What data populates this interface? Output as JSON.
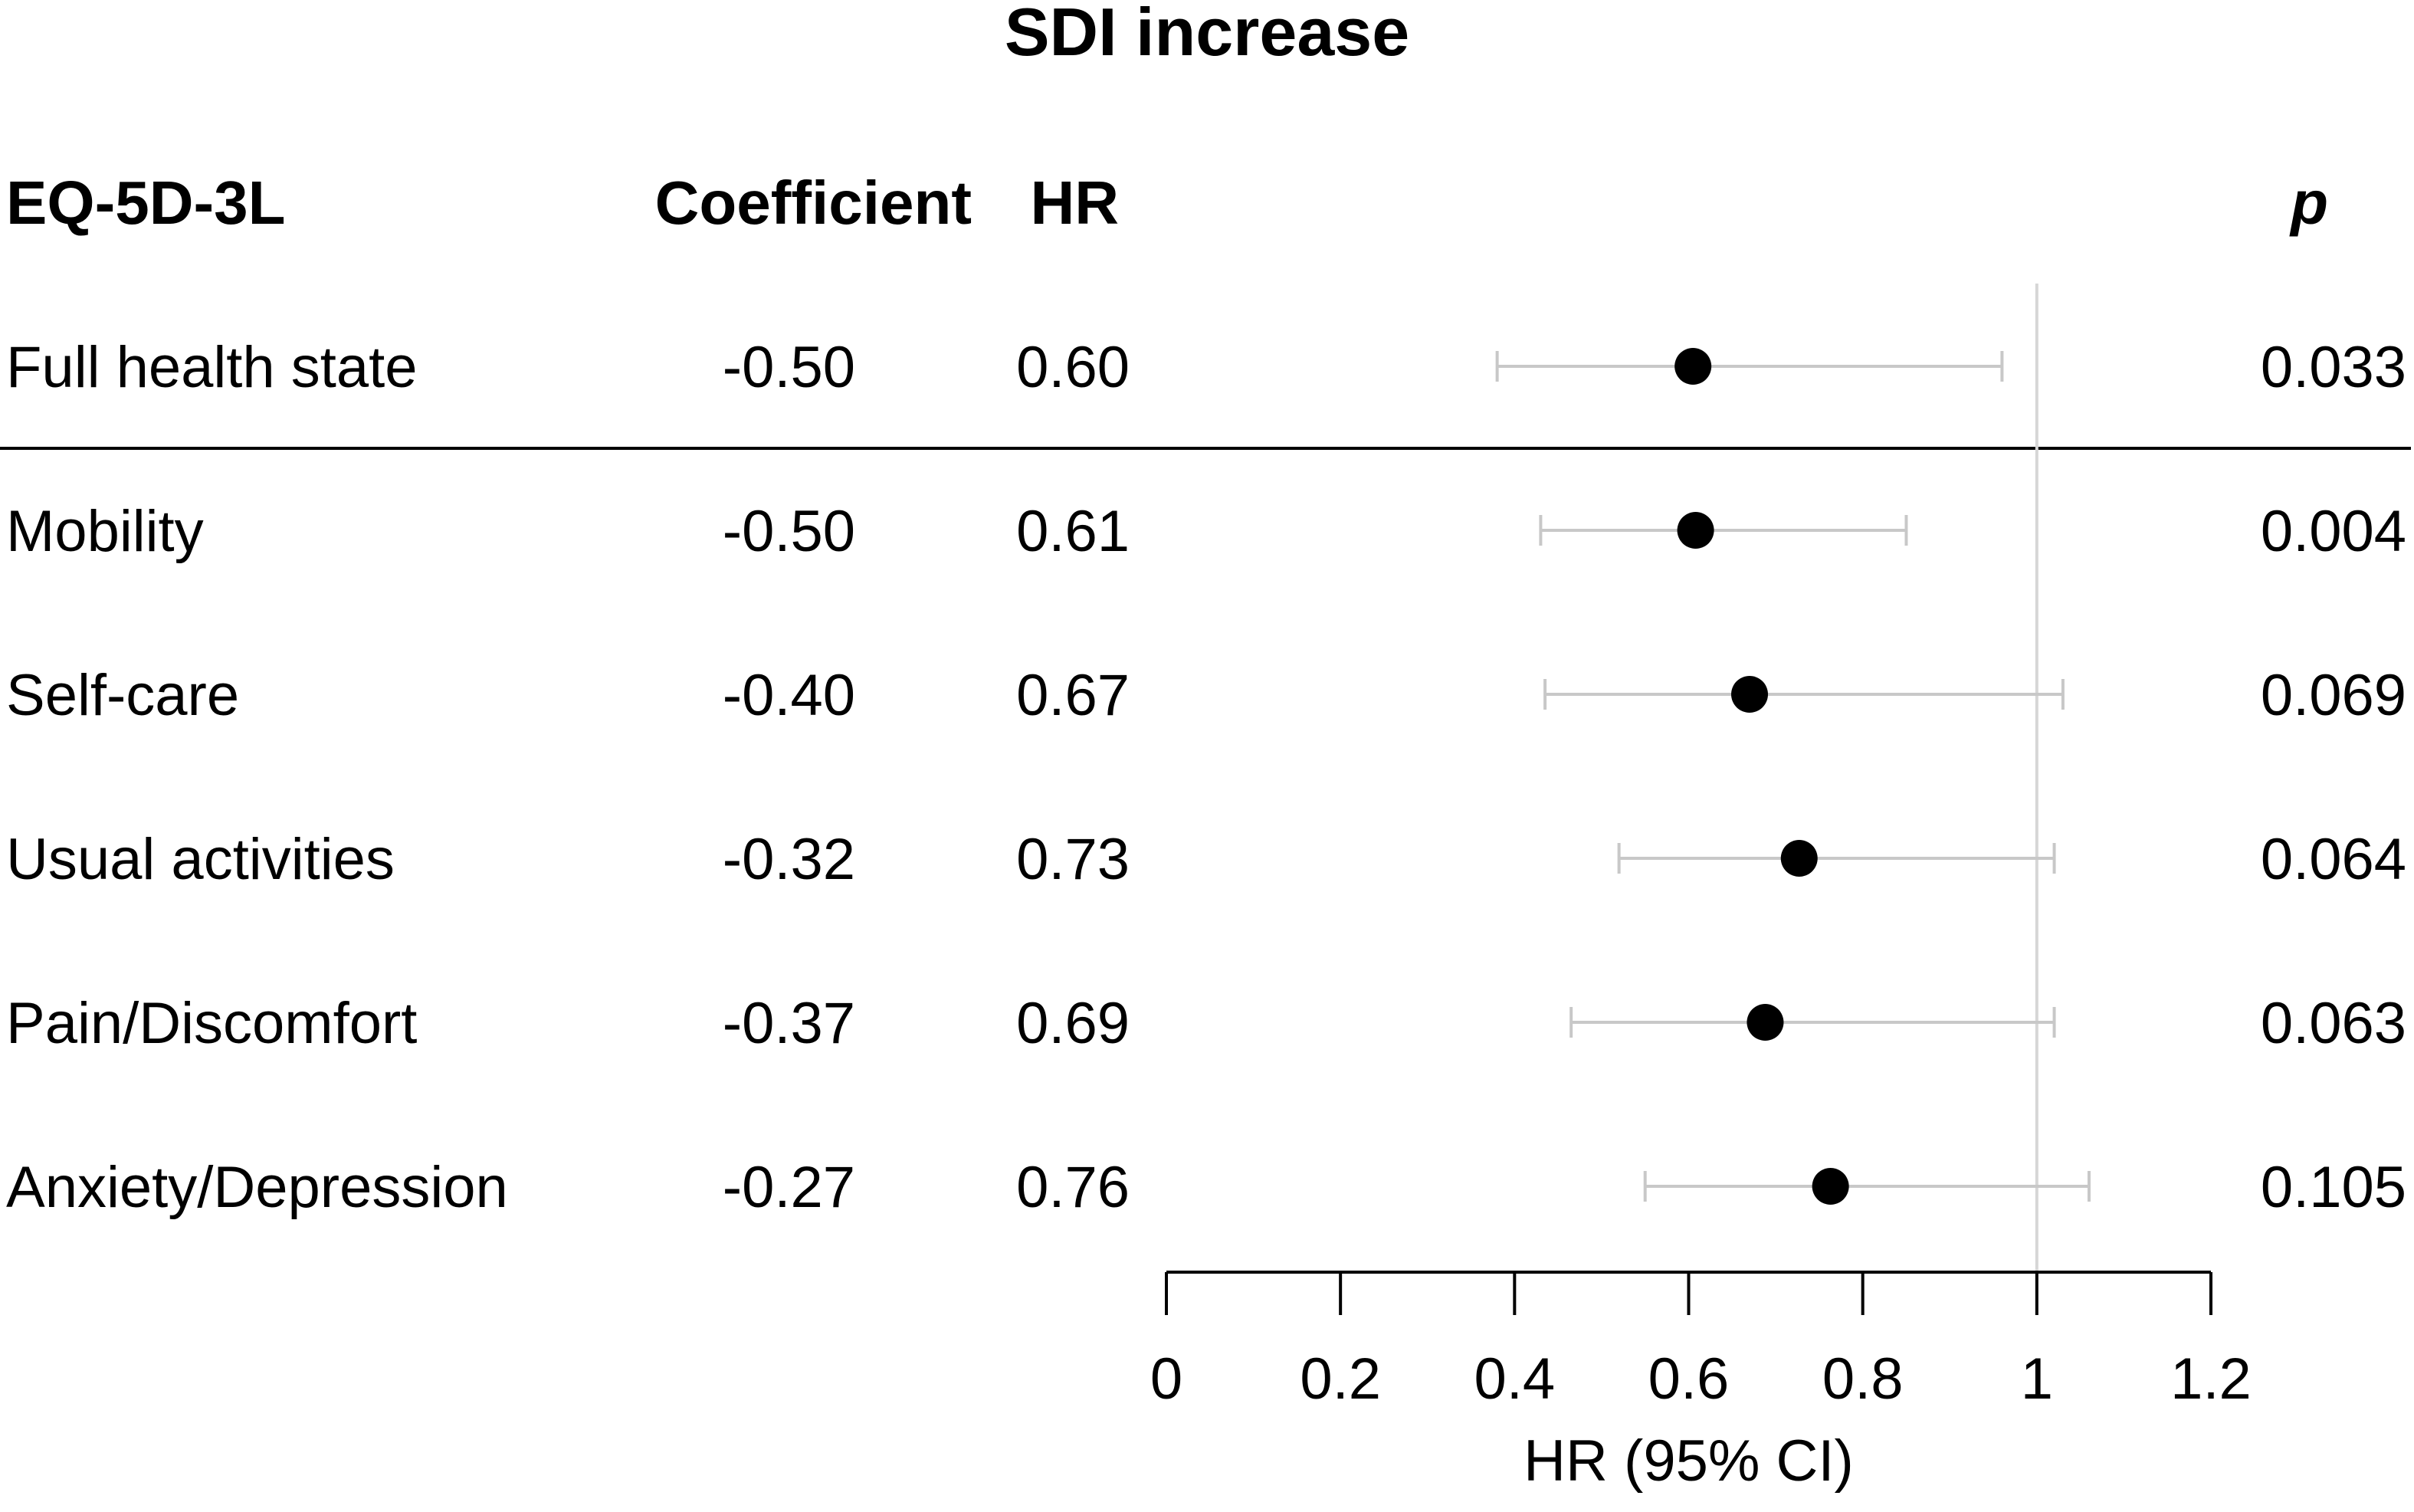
{
  "chart_data": {
    "type": "forest",
    "title": "SDI increase",
    "columns": {
      "label": "EQ-5D-3L",
      "coefficient": "Coefficient",
      "hr": "HR",
      "p": "p"
    },
    "rows": [
      {
        "label": "Full health state",
        "coefficient": "-0.50",
        "hr_text": "0.60",
        "hr": 0.605,
        "ci_low": 0.38,
        "ci_high": 0.96,
        "p": "0.033"
      },
      {
        "label": "Mobility",
        "coefficient": "-0.50",
        "hr_text": "0.61",
        "hr": 0.608,
        "ci_low": 0.43,
        "ci_high": 0.85,
        "p": "0.004"
      },
      {
        "label": "Self-care",
        "coefficient": "-0.40",
        "hr_text": "0.67",
        "hr": 0.67,
        "ci_low": 0.435,
        "ci_high": 1.03,
        "p": "0.069"
      },
      {
        "label": "Usual activities",
        "coefficient": "-0.32",
        "hr_text": "0.73",
        "hr": 0.727,
        "ci_low": 0.52,
        "ci_high": 1.02,
        "p": "0.064"
      },
      {
        "label": "Pain/Discomfort",
        "coefficient": "-0.37",
        "hr_text": "0.69",
        "hr": 0.688,
        "ci_low": 0.465,
        "ci_high": 1.02,
        "p": "0.063"
      },
      {
        "label": "Anxiety/Depression",
        "coefficient": "-0.27",
        "hr_text": "0.76",
        "hr": 0.763,
        "ci_low": 0.55,
        "ci_high": 1.06,
        "p": "0.105"
      }
    ],
    "xaxis": {
      "label": "HR (95% CI)",
      "min": 0,
      "max": 1.2,
      "ticks": [
        0,
        0.2,
        0.4,
        0.6,
        0.8,
        1,
        1.2
      ],
      "tick_labels": [
        "0",
        "0.2",
        "0.4",
        "0.6",
        "0.8",
        "1",
        "1.2"
      ]
    },
    "reference_line": 1,
    "colors": {
      "point": "#000000",
      "ci": "#c8c8c8",
      "reference": "#d6d6d6",
      "axis": "#000000",
      "divider": "#000000"
    }
  }
}
